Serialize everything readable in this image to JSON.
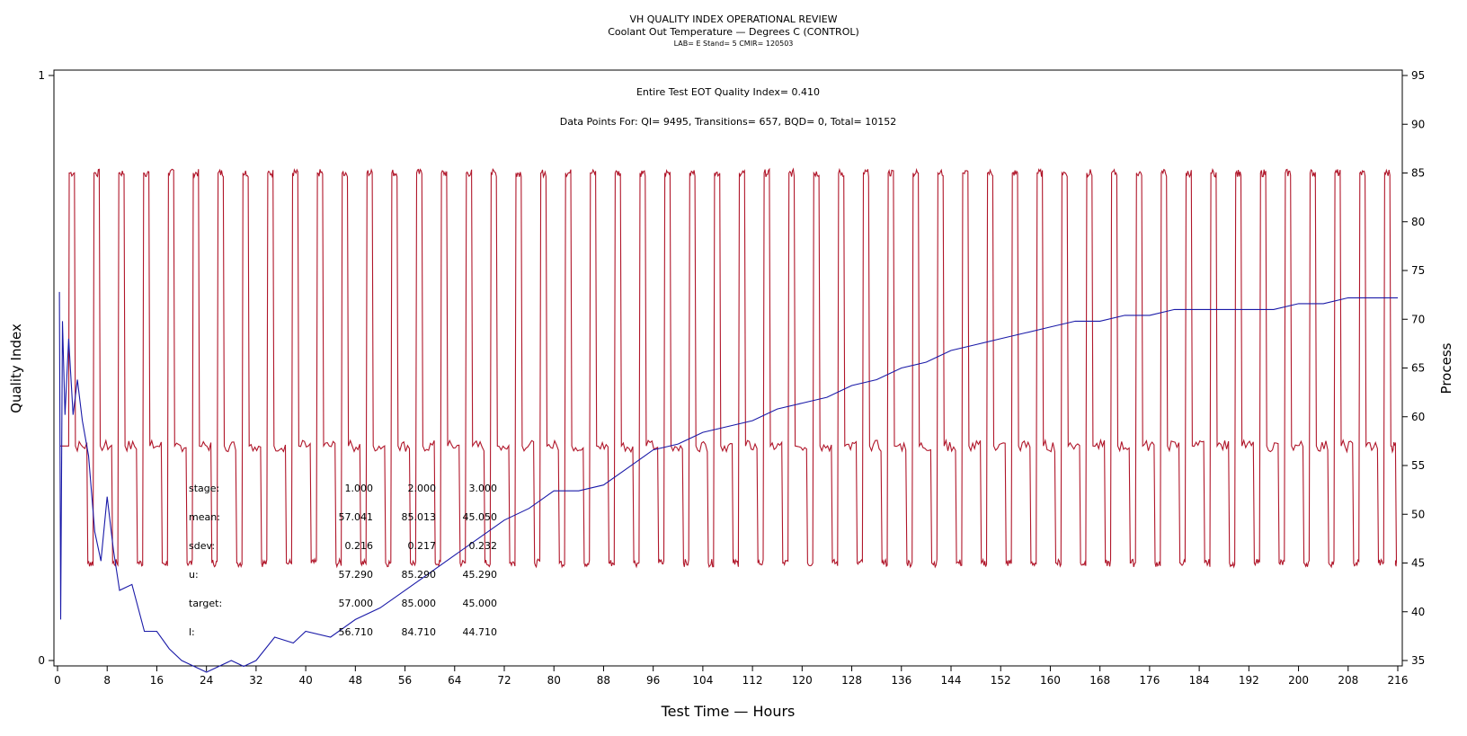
{
  "header": {
    "title": "VH QUALITY INDEX OPERATIONAL REVIEW",
    "subtitle": "Coolant Out Temperature — Degrees C (CONTROL)",
    "subsubtitle": "LAB= E Stand= 5 CMIR= 120503"
  },
  "annotations": {
    "qi_line": "Entire Test EOT Quality Index=   0.410",
    "points_line": "Data Points For: QI=  9495, Transitions=   657, BQD=     0, Total= 10152"
  },
  "stats": {
    "labels": [
      "stage:",
      "mean:",
      "sdev:",
      "u:",
      "target:",
      "l:"
    ],
    "columns": [
      [
        "1.000",
        "57.041",
        "0.216",
        "57.290",
        "57.000",
        "56.710"
      ],
      [
        "2.000",
        "85.013",
        "0.217",
        "85.290",
        "85.000",
        "84.710"
      ],
      [
        "3.000",
        "45.050",
        "0.232",
        "45.290",
        "45.000",
        "44.710"
      ]
    ]
  },
  "colors": {
    "process": "#b0162a",
    "quality_index": "#1a1aa8",
    "axis": "#000000"
  },
  "chart_data": {
    "type": "line",
    "title": "VH QUALITY INDEX OPERATIONAL REVIEW",
    "xlabel": "Test Time — Hours",
    "ylabel_left": "Quality Index",
    "ylabel_right": "Process",
    "xlim": [
      0,
      216
    ],
    "ylim_left": [
      0,
      1
    ],
    "ylim_right": [
      35,
      95
    ],
    "x_ticks": [
      "0",
      "8",
      "16",
      "24",
      "32",
      "40",
      "48",
      "56",
      "64",
      "72",
      "80",
      "88",
      "96",
      "104",
      "112",
      "120",
      "128",
      "136",
      "144",
      "152",
      "160",
      "168",
      "176",
      "184",
      "192",
      "200",
      "208",
      "216"
    ],
    "y_left_ticks": [
      "0",
      "1"
    ],
    "y_right_ticks": [
      "35",
      "40",
      "45",
      "50",
      "55",
      "60",
      "65",
      "70",
      "75",
      "80",
      "85",
      "90",
      "95"
    ],
    "grid": false,
    "series": [
      {
        "name": "Process",
        "axis": "right",
        "cycle_hours": 4,
        "cycles": 54,
        "segments": [
          {
            "stage": 2,
            "value": 85.0,
            "hours": 1.0
          },
          {
            "stage": 1,
            "value": 57.0,
            "hours": 2.0
          },
          {
            "stage": 3,
            "value": 45.0,
            "hours": 1.0
          }
        ]
      },
      {
        "name": "Quality Index",
        "axis": "left",
        "x": [
          0.3,
          0.5,
          0.8,
          1.2,
          1.8,
          2.5,
          3.2,
          4.0,
          5.0,
          6.0,
          7.0,
          8.0,
          9.0,
          10,
          12,
          14,
          16,
          18,
          20,
          22,
          24,
          26,
          28,
          30,
          32,
          35,
          38,
          40,
          44,
          48,
          52,
          56,
          60,
          64,
          68,
          72,
          76,
          80,
          84,
          88,
          92,
          96,
          100,
          104,
          108,
          112,
          116,
          120,
          124,
          128,
          132,
          136,
          140,
          144,
          148,
          152,
          156,
          160,
          164,
          168,
          172,
          176,
          180,
          184,
          188,
          192,
          196,
          200,
          204,
          208,
          212,
          216
        ],
        "values": [
          0.63,
          0.07,
          0.58,
          0.42,
          0.55,
          0.42,
          0.48,
          0.41,
          0.35,
          0.22,
          0.17,
          0.28,
          0.19,
          0.12,
          0.13,
          0.05,
          0.05,
          0.02,
          0.0,
          -0.01,
          -0.02,
          -0.01,
          0.0,
          -0.01,
          0.0,
          0.04,
          0.03,
          0.05,
          0.04,
          0.07,
          0.09,
          0.12,
          0.15,
          0.18,
          0.21,
          0.24,
          0.26,
          0.29,
          0.29,
          0.3,
          0.33,
          0.36,
          0.37,
          0.39,
          0.4,
          0.41,
          0.43,
          0.44,
          0.45,
          0.47,
          0.48,
          0.5,
          0.51,
          0.53,
          0.54,
          0.55,
          0.56,
          0.57,
          0.58,
          0.58,
          0.59,
          0.59,
          0.6,
          0.6,
          0.6,
          0.6,
          0.6,
          0.61,
          0.61,
          0.62,
          0.62,
          0.62
        ]
      }
    ]
  },
  "axes_text": {
    "x_title": "Test Time — Hours",
    "y_left_title": "Quality Index",
    "y_right_title": "Process"
  }
}
